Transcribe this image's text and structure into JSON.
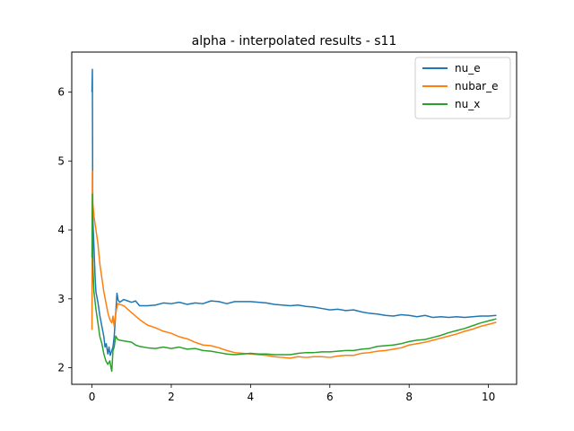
{
  "chart_data": {
    "type": "line",
    "title": "alpha - interpolated results - s11",
    "xlabel": "",
    "ylabel": "",
    "xlim": [
      -0.51,
      10.71
    ],
    "ylim": [
      1.76,
      6.58
    ],
    "xticks": [
      0,
      2,
      4,
      6,
      8,
      10
    ],
    "yticks": [
      2,
      3,
      4,
      5,
      6
    ],
    "grid": false,
    "legend_position": "top-right",
    "series": [
      {
        "name": "nu_e",
        "color": "#1f77b4",
        "points": [
          [
            0.0,
            6.0
          ],
          [
            0.01,
            6.33
          ],
          [
            0.02,
            4.2
          ],
          [
            0.04,
            3.9
          ],
          [
            0.06,
            3.6
          ],
          [
            0.08,
            3.3
          ],
          [
            0.1,
            3.1
          ],
          [
            0.15,
            2.95
          ],
          [
            0.2,
            2.75
          ],
          [
            0.25,
            2.6
          ],
          [
            0.3,
            2.45
          ],
          [
            0.33,
            2.3
          ],
          [
            0.36,
            2.35
          ],
          [
            0.4,
            2.2
          ],
          [
            0.43,
            2.3
          ],
          [
            0.46,
            2.18
          ],
          [
            0.5,
            2.25
          ],
          [
            0.53,
            2.3
          ],
          [
            0.56,
            2.45
          ],
          [
            0.6,
            2.8
          ],
          [
            0.63,
            3.08
          ],
          [
            0.66,
            2.98
          ],
          [
            0.7,
            2.95
          ],
          [
            0.8,
            2.99
          ],
          [
            0.9,
            2.97
          ],
          [
            1.0,
            2.95
          ],
          [
            1.1,
            2.97
          ],
          [
            1.2,
            2.9
          ],
          [
            1.4,
            2.9
          ],
          [
            1.6,
            2.91
          ],
          [
            1.8,
            2.94
          ],
          [
            2.0,
            2.93
          ],
          [
            2.2,
            2.95
          ],
          [
            2.4,
            2.92
          ],
          [
            2.6,
            2.94
          ],
          [
            2.8,
            2.93
          ],
          [
            3.0,
            2.97
          ],
          [
            3.2,
            2.96
          ],
          [
            3.4,
            2.93
          ],
          [
            3.6,
            2.96
          ],
          [
            3.8,
            2.96
          ],
          [
            4.0,
            2.96
          ],
          [
            4.2,
            2.95
          ],
          [
            4.4,
            2.94
          ],
          [
            4.6,
            2.92
          ],
          [
            4.8,
            2.91
          ],
          [
            5.0,
            2.9
          ],
          [
            5.2,
            2.91
          ],
          [
            5.4,
            2.89
          ],
          [
            5.6,
            2.88
          ],
          [
            5.8,
            2.86
          ],
          [
            6.0,
            2.84
          ],
          [
            6.2,
            2.85
          ],
          [
            6.4,
            2.83
          ],
          [
            6.6,
            2.84
          ],
          [
            6.8,
            2.81
          ],
          [
            7.0,
            2.79
          ],
          [
            7.2,
            2.78
          ],
          [
            7.4,
            2.76
          ],
          [
            7.6,
            2.75
          ],
          [
            7.8,
            2.77
          ],
          [
            8.0,
            2.76
          ],
          [
            8.2,
            2.74
          ],
          [
            8.4,
            2.76
          ],
          [
            8.6,
            2.73
          ],
          [
            8.8,
            2.74
          ],
          [
            9.0,
            2.73
          ],
          [
            9.2,
            2.74
          ],
          [
            9.4,
            2.73
          ],
          [
            9.6,
            2.74
          ],
          [
            9.8,
            2.75
          ],
          [
            10.0,
            2.75
          ],
          [
            10.2,
            2.76
          ]
        ]
      },
      {
        "name": "nubar_e",
        "color": "#ff7f0e",
        "points": [
          [
            0.0,
            2.55
          ],
          [
            0.01,
            4.85
          ],
          [
            0.02,
            4.4
          ],
          [
            0.05,
            4.2
          ],
          [
            0.1,
            4.0
          ],
          [
            0.15,
            3.8
          ],
          [
            0.2,
            3.5
          ],
          [
            0.25,
            3.3
          ],
          [
            0.3,
            3.1
          ],
          [
            0.35,
            2.95
          ],
          [
            0.4,
            2.8
          ],
          [
            0.45,
            2.7
          ],
          [
            0.5,
            2.65
          ],
          [
            0.53,
            2.75
          ],
          [
            0.56,
            2.6
          ],
          [
            0.6,
            2.8
          ],
          [
            0.65,
            2.93
          ],
          [
            0.7,
            2.92
          ],
          [
            0.8,
            2.9
          ],
          [
            0.9,
            2.85
          ],
          [
            1.0,
            2.8
          ],
          [
            1.2,
            2.7
          ],
          [
            1.4,
            2.62
          ],
          [
            1.6,
            2.58
          ],
          [
            1.8,
            2.53
          ],
          [
            2.0,
            2.5
          ],
          [
            2.2,
            2.45
          ],
          [
            2.4,
            2.42
          ],
          [
            2.6,
            2.37
          ],
          [
            2.8,
            2.33
          ],
          [
            3.0,
            2.32
          ],
          [
            3.2,
            2.29
          ],
          [
            3.4,
            2.25
          ],
          [
            3.6,
            2.22
          ],
          [
            3.8,
            2.21
          ],
          [
            4.0,
            2.2
          ],
          [
            4.2,
            2.19
          ],
          [
            4.4,
            2.18
          ],
          [
            4.6,
            2.16
          ],
          [
            4.8,
            2.15
          ],
          [
            5.0,
            2.14
          ],
          [
            5.2,
            2.16
          ],
          [
            5.4,
            2.15
          ],
          [
            5.6,
            2.16
          ],
          [
            5.8,
            2.16
          ],
          [
            6.0,
            2.15
          ],
          [
            6.2,
            2.17
          ],
          [
            6.4,
            2.18
          ],
          [
            6.6,
            2.18
          ],
          [
            6.8,
            2.21
          ],
          [
            7.0,
            2.22
          ],
          [
            7.2,
            2.24
          ],
          [
            7.4,
            2.25
          ],
          [
            7.6,
            2.27
          ],
          [
            7.8,
            2.29
          ],
          [
            8.0,
            2.33
          ],
          [
            8.2,
            2.35
          ],
          [
            8.4,
            2.37
          ],
          [
            8.6,
            2.4
          ],
          [
            8.8,
            2.43
          ],
          [
            9.0,
            2.46
          ],
          [
            9.2,
            2.49
          ],
          [
            9.4,
            2.53
          ],
          [
            9.6,
            2.56
          ],
          [
            9.8,
            2.6
          ],
          [
            10.0,
            2.63
          ],
          [
            10.2,
            2.66
          ]
        ]
      },
      {
        "name": "nu_x",
        "color": "#2ca02c",
        "points": [
          [
            0.0,
            3.6
          ],
          [
            0.01,
            4.52
          ],
          [
            0.02,
            3.5
          ],
          [
            0.05,
            3.1
          ],
          [
            0.1,
            2.85
          ],
          [
            0.15,
            2.65
          ],
          [
            0.2,
            2.45
          ],
          [
            0.25,
            2.35
          ],
          [
            0.3,
            2.2
          ],
          [
            0.35,
            2.1
          ],
          [
            0.4,
            2.05
          ],
          [
            0.45,
            2.1
          ],
          [
            0.48,
            2.0
          ],
          [
            0.5,
            1.95
          ],
          [
            0.53,
            2.25
          ],
          [
            0.56,
            2.3
          ],
          [
            0.6,
            2.46
          ],
          [
            0.65,
            2.41
          ],
          [
            0.7,
            2.4
          ],
          [
            0.8,
            2.39
          ],
          [
            0.9,
            2.38
          ],
          [
            1.0,
            2.37
          ],
          [
            1.1,
            2.33
          ],
          [
            1.2,
            2.31
          ],
          [
            1.4,
            2.29
          ],
          [
            1.6,
            2.28
          ],
          [
            1.8,
            2.3
          ],
          [
            2.0,
            2.28
          ],
          [
            2.2,
            2.3
          ],
          [
            2.4,
            2.27
          ],
          [
            2.6,
            2.28
          ],
          [
            2.8,
            2.25
          ],
          [
            3.0,
            2.24
          ],
          [
            3.2,
            2.22
          ],
          [
            3.4,
            2.2
          ],
          [
            3.6,
            2.19
          ],
          [
            3.8,
            2.2
          ],
          [
            4.0,
            2.21
          ],
          [
            4.2,
            2.2
          ],
          [
            4.4,
            2.2
          ],
          [
            4.6,
            2.19
          ],
          [
            4.8,
            2.19
          ],
          [
            5.0,
            2.19
          ],
          [
            5.2,
            2.21
          ],
          [
            5.4,
            2.22
          ],
          [
            5.6,
            2.22
          ],
          [
            5.8,
            2.23
          ],
          [
            6.0,
            2.23
          ],
          [
            6.2,
            2.24
          ],
          [
            6.4,
            2.25
          ],
          [
            6.6,
            2.25
          ],
          [
            6.8,
            2.27
          ],
          [
            7.0,
            2.28
          ],
          [
            7.2,
            2.31
          ],
          [
            7.4,
            2.32
          ],
          [
            7.6,
            2.33
          ],
          [
            7.8,
            2.35
          ],
          [
            8.0,
            2.38
          ],
          [
            8.2,
            2.4
          ],
          [
            8.4,
            2.41
          ],
          [
            8.6,
            2.44
          ],
          [
            8.8,
            2.47
          ],
          [
            9.0,
            2.51
          ],
          [
            9.2,
            2.54
          ],
          [
            9.4,
            2.57
          ],
          [
            9.6,
            2.61
          ],
          [
            9.8,
            2.65
          ],
          [
            10.0,
            2.68
          ],
          [
            10.2,
            2.71
          ]
        ]
      }
    ]
  }
}
